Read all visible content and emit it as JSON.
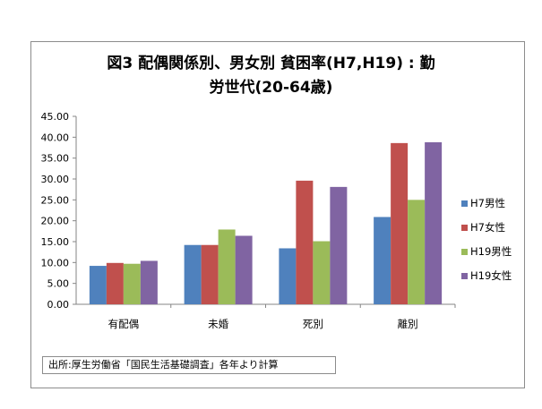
{
  "chart_data": {
    "type": "bar",
    "title": "図3 配偶関係別、男女別 貧困率(H7,H19) : 勤",
    "title_line2": "労世代(20-64歳)",
    "categories": [
      "有配偶",
      "未婚",
      "死別",
      "離別"
    ],
    "series": [
      {
        "name": "H7男性",
        "color": "#4f81bd",
        "values": [
          9.2,
          14.2,
          13.4,
          20.9
        ]
      },
      {
        "name": "H7女性",
        "color": "#c0504d",
        "values": [
          9.9,
          14.2,
          29.6,
          38.6
        ]
      },
      {
        "name": "H19男性",
        "color": "#9bbb59",
        "values": [
          9.7,
          17.9,
          15.1,
          25.0
        ]
      },
      {
        "name": "H19女性",
        "color": "#8064a2",
        "values": [
          10.4,
          16.4,
          28.1,
          38.8
        ]
      }
    ],
    "y_ticks": [
      "0.00",
      "5.00",
      "10.00",
      "15.00",
      "20.00",
      "25.00",
      "30.00",
      "35.00",
      "40.00",
      "45.00"
    ],
    "ylim": [
      0,
      45
    ],
    "grid": false,
    "legend_position": "right"
  },
  "source_note": "出所:厚生労働省「国民生活基礎調査」各年より計算"
}
